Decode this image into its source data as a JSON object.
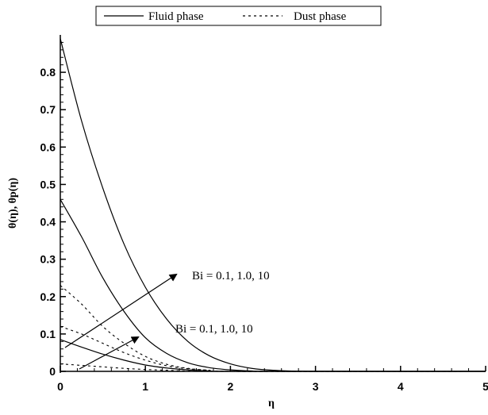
{
  "chart_data": {
    "type": "line",
    "title": "",
    "xlabel": "η",
    "ylabel": "θ(η), θp(η)",
    "xlim": [
      0,
      5
    ],
    "ylim": [
      0,
      0.9
    ],
    "xticks": [
      0,
      1,
      2,
      3,
      4,
      5
    ],
    "yticks": [
      0,
      0.1,
      0.2,
      0.3,
      0.4,
      0.5,
      0.6,
      0.7,
      0.8
    ],
    "xtick_labels": [
      "0",
      "1",
      "2",
      "3",
      "4",
      "5"
    ],
    "ytick_labels": [
      "0",
      "0.1",
      "0.2",
      "0.3",
      "0.4",
      "0.5",
      "0.6",
      "0.7",
      "0.8"
    ],
    "grid": false,
    "legend": {
      "position": "top",
      "entries": [
        {
          "label": "Fluid phase",
          "style": "solid"
        },
        {
          "label": "Dust phase",
          "style": "dotted"
        }
      ]
    },
    "annotations": [
      {
        "text": "Bi = 0.1, 1.0, 10"
      },
      {
        "text": "Bi = 0.1, 1.0, 10"
      }
    ],
    "series": [
      {
        "phase": "fluid",
        "style": "solid",
        "x": [
          0,
          0.25,
          0.5,
          0.75,
          1.0,
          1.25,
          1.5,
          1.75,
          2.0,
          2.25,
          2.5,
          3.0,
          5.0
        ],
        "y": [
          0.89,
          0.67,
          0.49,
          0.34,
          0.225,
          0.14,
          0.08,
          0.042,
          0.02,
          0.008,
          0.003,
          0.0,
          0.0
        ]
      },
      {
        "phase": "fluid",
        "style": "solid",
        "x": [
          0,
          0.25,
          0.5,
          0.75,
          1.0,
          1.25,
          1.5,
          1.75,
          2.0,
          2.25,
          2.5,
          5.0
        ],
        "y": [
          0.46,
          0.36,
          0.25,
          0.16,
          0.09,
          0.048,
          0.023,
          0.01,
          0.004,
          0.001,
          0.0,
          0.0
        ]
      },
      {
        "phase": "fluid",
        "style": "solid",
        "x": [
          0,
          0.25,
          0.5,
          0.75,
          1.0,
          1.25,
          1.5,
          1.75,
          2.0,
          5.0
        ],
        "y": [
          0.085,
          0.065,
          0.046,
          0.03,
          0.017,
          0.009,
          0.004,
          0.001,
          0.0,
          0.0
        ]
      },
      {
        "phase": "dust",
        "style": "dotted",
        "x": [
          0,
          0.25,
          0.5,
          0.75,
          1.0,
          1.25,
          1.5,
          1.75,
          2.0,
          5.0
        ],
        "y": [
          0.23,
          0.18,
          0.12,
          0.075,
          0.04,
          0.019,
          0.008,
          0.003,
          0.0,
          0.0
        ]
      },
      {
        "phase": "dust",
        "style": "dotted",
        "x": [
          0,
          0.25,
          0.5,
          0.75,
          1.0,
          1.25,
          1.5,
          1.75,
          2.0,
          5.0
        ],
        "y": [
          0.12,
          0.1,
          0.075,
          0.05,
          0.03,
          0.015,
          0.007,
          0.003,
          0.0,
          0.0
        ]
      },
      {
        "phase": "dust",
        "style": "dotted",
        "x": [
          0,
          0.25,
          0.5,
          0.75,
          1.0,
          1.25,
          1.5,
          2.0,
          5.0
        ],
        "y": [
          0.02,
          0.016,
          0.012,
          0.008,
          0.005,
          0.003,
          0.001,
          0.0,
          0.0
        ]
      }
    ]
  }
}
